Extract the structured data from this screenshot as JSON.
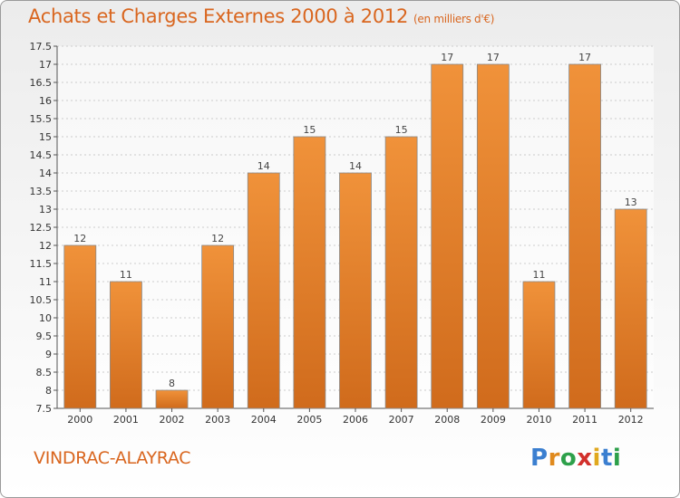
{
  "chart_data": {
    "type": "bar",
    "title": "Achats et Charges Externes 2000 à 2012",
    "subtitle": "(en milliers d'€)",
    "categories": [
      "2000",
      "2001",
      "2002",
      "2003",
      "2004",
      "2005",
      "2006",
      "2007",
      "2008",
      "2009",
      "2010",
      "2011",
      "2012"
    ],
    "values": [
      12,
      11,
      8,
      12,
      14,
      15,
      14,
      15,
      17,
      17,
      11,
      17,
      13
    ],
    "ylim": [
      7.5,
      17.5
    ],
    "yticks": [
      "7.5",
      "8",
      "8.5",
      "9",
      "9.5",
      "10",
      "10.5",
      "11",
      "11.5",
      "12",
      "12.5",
      "13",
      "13.5",
      "14",
      "14.5",
      "15",
      "15.5",
      "16",
      "16.5",
      "17",
      "17.5"
    ],
    "grid": true,
    "bar_color": "#f0923a",
    "bar_color_dark": "#d06b1c"
  },
  "location": "VINDRAC-ALAYRAC",
  "logo": {
    "letters": [
      "P",
      "r",
      "o",
      "x",
      "i",
      "t",
      "i"
    ],
    "colors": [
      "#3b7fd0",
      "#e08a1e",
      "#2da04a",
      "#d2302c",
      "#e0a81e",
      "#3b7fd0",
      "#2da04a"
    ]
  }
}
